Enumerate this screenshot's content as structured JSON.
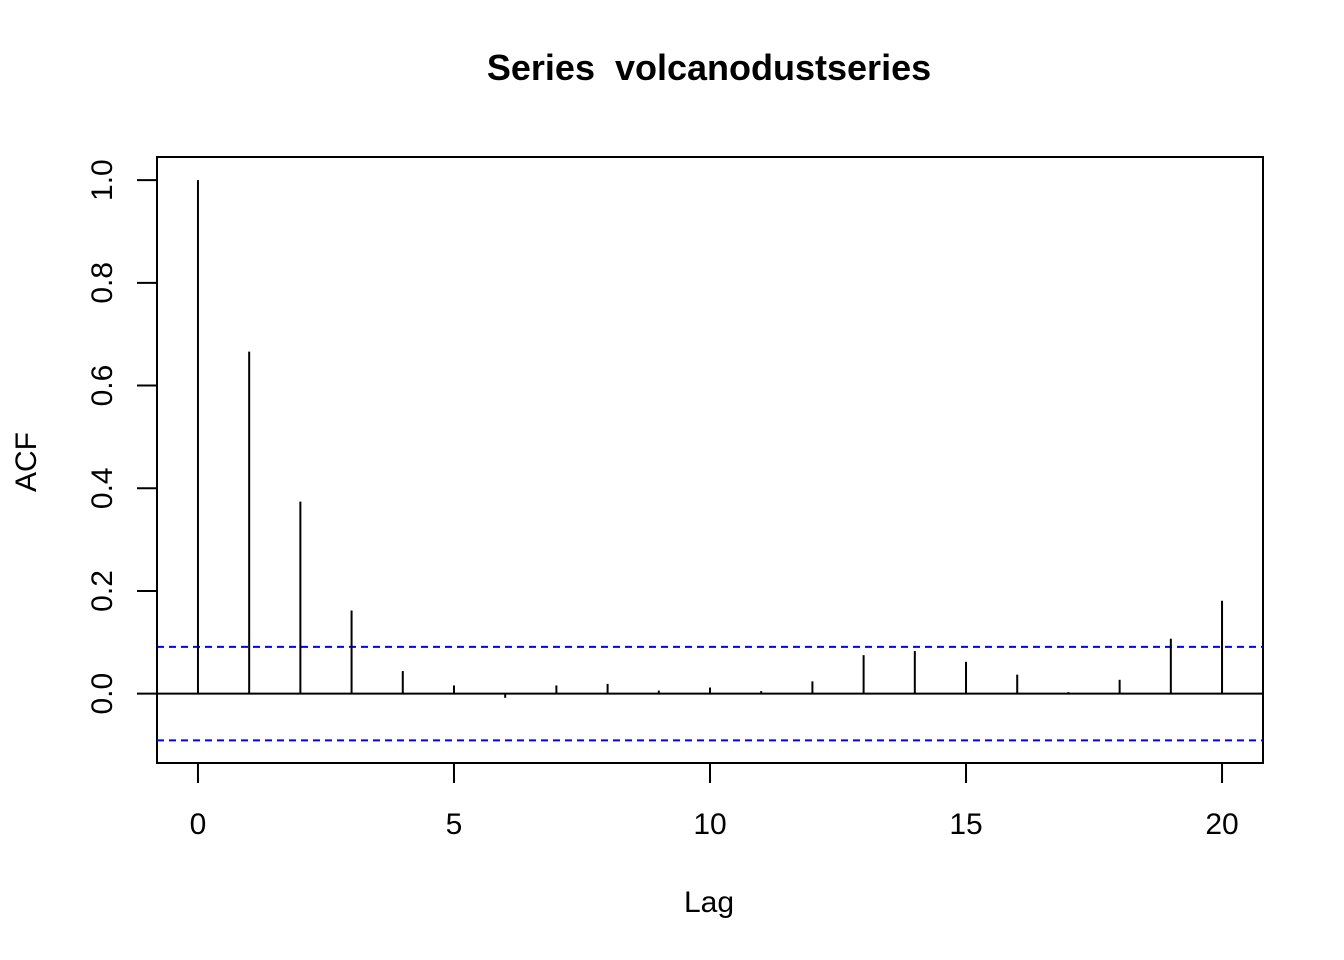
{
  "chart_data": {
    "type": "bar",
    "title": "Series  volcanodustseries",
    "xlabel": "Lag",
    "ylabel": "ACF",
    "x": [
      0,
      1,
      2,
      3,
      4,
      5,
      6,
      7,
      8,
      9,
      10,
      11,
      12,
      13,
      14,
      15,
      16,
      17,
      18,
      19,
      20
    ],
    "values": [
      1.0,
      0.666,
      0.374,
      0.162,
      0.044,
      0.016,
      -0.008,
      0.016,
      0.019,
      0.006,
      0.012,
      0.005,
      0.024,
      0.075,
      0.083,
      0.062,
      0.037,
      0.003,
      0.027,
      0.107,
      0.181
    ],
    "xlim": [
      -0.8,
      20.8
    ],
    "ylim": [
      -0.135,
      1.045
    ],
    "xticks": [
      0,
      5,
      10,
      15,
      20
    ],
    "xtick_labels": [
      "0",
      "5",
      "10",
      "15",
      "20"
    ],
    "yticks": [
      0.0,
      0.2,
      0.4,
      0.6,
      0.8,
      1.0
    ],
    "ytick_labels": [
      "0.0",
      "0.2",
      "0.4",
      "0.6",
      "0.8",
      "1.0"
    ],
    "confidence_bound": 0.091,
    "zero_line": true,
    "grid": false,
    "colors": {
      "bars": "#000000",
      "confidence": "#0000ff"
    }
  }
}
